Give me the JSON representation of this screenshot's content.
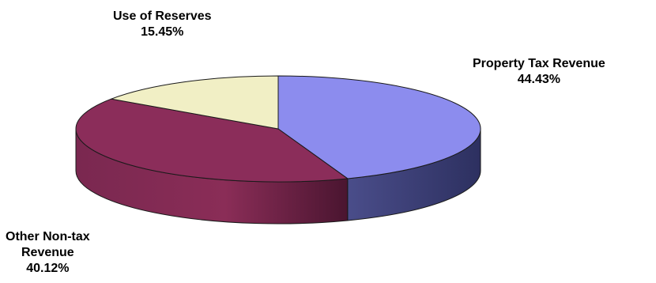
{
  "chart_data": {
    "type": "pie",
    "style": "3d",
    "title": "",
    "slices": [
      {
        "label": "Property Tax Revenue",
        "value": 44.43,
        "value_label": "44.43%",
        "color": "#8c8cee"
      },
      {
        "label": "Other Non-tax Revenue",
        "value": 40.12,
        "value_label": "40.12%",
        "color": "#8b2d5a"
      },
      {
        "label": "Use of Reserves",
        "value": 15.45,
        "value_label": "15.45%",
        "color": "#f1efc5"
      }
    ]
  }
}
